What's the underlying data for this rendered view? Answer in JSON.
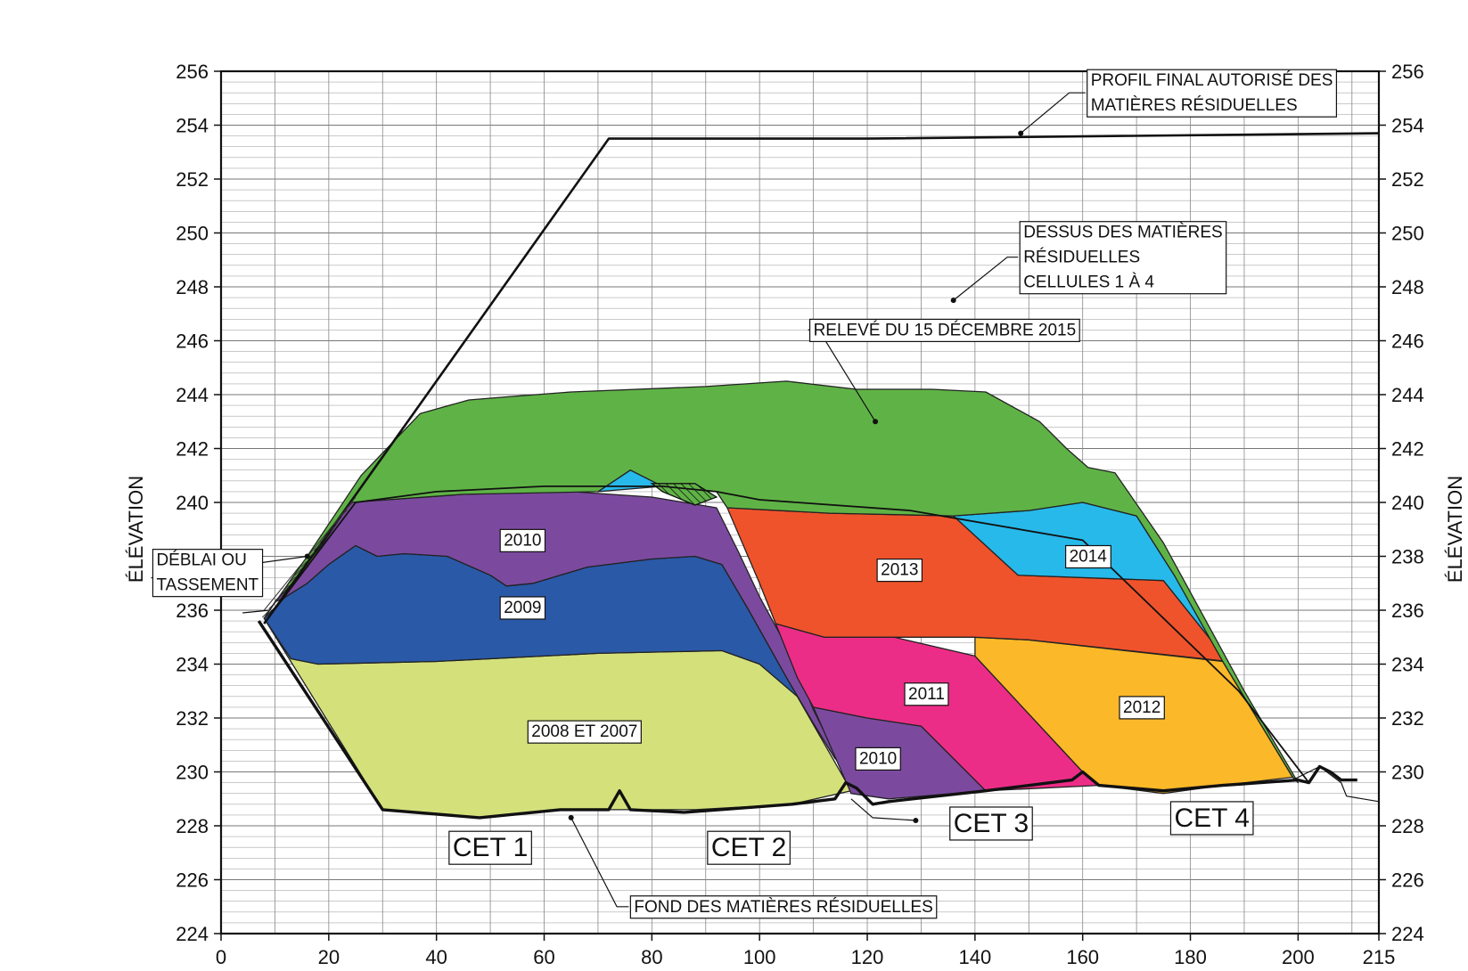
{
  "chart_data": {
    "type": "area",
    "xlim": [
      0,
      215
    ],
    "ylim": [
      224,
      256
    ],
    "x_ticks": [
      "0",
      "20",
      "40",
      "60",
      "80",
      "100",
      "120",
      "140",
      "160",
      "180",
      "200",
      "215"
    ],
    "y_ticks": [
      "224",
      "226",
      "228",
      "230",
      "232",
      "234",
      "236",
      "238",
      "240",
      "242",
      "244",
      "246",
      "248",
      "250",
      "252",
      "254",
      "256"
    ],
    "ylabel": "ÉLÉVATION",
    "grid": true,
    "colors": {
      "2008_2007": "#d4e17b",
      "2009": "#2a59a8",
      "2010": "#7b4a9f",
      "2011": "#ec2d87",
      "2012": "#fbb828",
      "2013": "#ef532c",
      "2014": "#27b9ea",
      "2015": "#5fb346"
    },
    "zones": [
      {
        "name": "2008 ET 2007",
        "color": "#d4e17b",
        "points": [
          [
            8,
            235.7
          ],
          [
            13,
            234.2
          ],
          [
            18,
            234
          ],
          [
            40,
            234.1
          ],
          [
            70,
            234.4
          ],
          [
            93,
            234.5
          ],
          [
            100,
            234
          ],
          [
            107,
            232.8
          ],
          [
            117,
            229.3
          ],
          [
            106,
            228.8
          ],
          [
            88,
            228.6
          ],
          [
            63,
            228.6
          ],
          [
            48,
            228.3
          ],
          [
            30,
            228.6
          ],
          [
            8,
            235.7
          ]
        ]
      },
      {
        "name": "2009",
        "color": "#2a59a8",
        "points": [
          [
            8,
            235.7
          ],
          [
            12,
            236.5
          ],
          [
            16,
            237
          ],
          [
            20,
            237.7
          ],
          [
            25,
            238.4
          ],
          [
            29,
            238
          ],
          [
            34,
            238.1
          ],
          [
            42,
            238
          ],
          [
            50,
            237.3
          ],
          [
            53,
            236.9
          ],
          [
            58,
            237
          ],
          [
            68,
            237.6
          ],
          [
            80,
            237.9
          ],
          [
            88,
            238
          ],
          [
            93,
            237.7
          ],
          [
            98,
            236
          ],
          [
            105,
            233.5
          ],
          [
            110,
            231.8
          ],
          [
            114,
            230.5
          ],
          [
            107,
            232.8
          ],
          [
            100,
            234
          ],
          [
            93,
            234.5
          ],
          [
            70,
            234.4
          ],
          [
            40,
            234.1
          ],
          [
            18,
            234
          ],
          [
            13,
            234.2
          ],
          [
            8,
            235.7
          ]
        ]
      },
      {
        "name": "2010",
        "color": "#7b4a9f",
        "points": [
          [
            10,
            236.3
          ],
          [
            16,
            237.6
          ],
          [
            24,
            240
          ],
          [
            45,
            240.3
          ],
          [
            65,
            240.4
          ],
          [
            80,
            240.2
          ],
          [
            92,
            239.8
          ],
          [
            96,
            238.2
          ],
          [
            100,
            236.5
          ],
          [
            106,
            234.3
          ],
          [
            110,
            232.3
          ],
          [
            115,
            230.3
          ],
          [
            114,
            230.5
          ],
          [
            110,
            231.8
          ],
          [
            105,
            233.5
          ],
          [
            98,
            236
          ],
          [
            93,
            237.7
          ],
          [
            88,
            238
          ],
          [
            80,
            237.9
          ],
          [
            68,
            237.6
          ],
          [
            58,
            237
          ],
          [
            53,
            236.9
          ],
          [
            50,
            237.3
          ],
          [
            42,
            238
          ],
          [
            34,
            238.1
          ],
          [
            29,
            238
          ],
          [
            25,
            238.4
          ],
          [
            20,
            237.7
          ],
          [
            16,
            237
          ],
          [
            12,
            236.5
          ],
          [
            10,
            236.3
          ]
        ]
      },
      {
        "name": "2010b",
        "color": "#7b4a9f",
        "points": [
          [
            110,
            232.4
          ],
          [
            120,
            232
          ],
          [
            130,
            231.7
          ],
          [
            142,
            229.3
          ],
          [
            124,
            229
          ],
          [
            117,
            229.2
          ],
          [
            110,
            232.4
          ]
        ]
      },
      {
        "name": "2011",
        "color": "#ec2d87",
        "points": [
          [
            103,
            235.5
          ],
          [
            112,
            235
          ],
          [
            125,
            235
          ],
          [
            140,
            234.3
          ],
          [
            160,
            230
          ],
          [
            163,
            229.5
          ],
          [
            142,
            229.3
          ],
          [
            130,
            231.7
          ],
          [
            120,
            232
          ],
          [
            110,
            232.4
          ],
          [
            107,
            233.5
          ],
          [
            103,
            235.5
          ]
        ]
      },
      {
        "name": "2012",
        "color": "#fbb828",
        "points": [
          [
            140,
            234.3
          ],
          [
            140,
            235
          ],
          [
            150,
            234.9
          ],
          [
            186,
            234.1
          ],
          [
            199,
            229.8
          ],
          [
            186,
            229.5
          ],
          [
            175,
            229.2
          ],
          [
            163,
            229.5
          ],
          [
            160,
            230
          ],
          [
            140,
            234.3
          ]
        ]
      },
      {
        "name": "2013",
        "color": "#ef532c",
        "points": [
          [
            94,
            239.8
          ],
          [
            113,
            239.6
          ],
          [
            136,
            239.5
          ],
          [
            148,
            237.3
          ],
          [
            175,
            237.1
          ],
          [
            187,
            234.1
          ],
          [
            150,
            234.9
          ],
          [
            140,
            235
          ],
          [
            125,
            235
          ],
          [
            112,
            235
          ],
          [
            103,
            235.5
          ],
          [
            100,
            237
          ],
          [
            94,
            239.8
          ]
        ]
      },
      {
        "name": "2014",
        "color": "#27b9ea",
        "points": [
          [
            136,
            239.5
          ],
          [
            150,
            239.7
          ],
          [
            160,
            240
          ],
          [
            170,
            239.5
          ],
          [
            177,
            237.3
          ],
          [
            187,
            234.1
          ],
          [
            175,
            237.1
          ],
          [
            148,
            237.3
          ],
          [
            136,
            239.5
          ]
        ]
      },
      {
        "name": "2014b",
        "color": "#27b9ea",
        "points": [
          [
            70,
            240.4
          ],
          [
            76,
            241.2
          ],
          [
            82,
            240.6
          ],
          [
            70,
            240.4
          ]
        ]
      },
      {
        "name": "2015",
        "color": "#5fb346",
        "points": [
          [
            8,
            235.7
          ],
          [
            16,
            238
          ],
          [
            26,
            241
          ],
          [
            37,
            243.3
          ],
          [
            46,
            243.8
          ],
          [
            52,
            243.9
          ],
          [
            65,
            244.1
          ],
          [
            90,
            244.3
          ],
          [
            105,
            244.5
          ],
          [
            118,
            244.2
          ],
          [
            132,
            244.2
          ],
          [
            142,
            244.1
          ],
          [
            152,
            243
          ],
          [
            157,
            242
          ],
          [
            161,
            241.3
          ],
          [
            166,
            241.1
          ],
          [
            175,
            238.5
          ],
          [
            190,
            233
          ],
          [
            200,
            229.6
          ],
          [
            199,
            229.8
          ],
          [
            186,
            234.1
          ],
          [
            177,
            237.3
          ],
          [
            170,
            239.5
          ],
          [
            160,
            240
          ],
          [
            150,
            239.7
          ],
          [
            136,
            239.5
          ],
          [
            113,
            239.6
          ],
          [
            94,
            239.8
          ],
          [
            92,
            240.4
          ],
          [
            82,
            240.6
          ],
          [
            76,
            241.2
          ],
          [
            70,
            240.4
          ],
          [
            45,
            240.3
          ],
          [
            24,
            240
          ],
          [
            16,
            237.6
          ],
          [
            10,
            236.3
          ],
          [
            8,
            235.7
          ]
        ]
      }
    ],
    "lines": {
      "profil_final": [
        [
          8,
          235.5
        ],
        [
          72,
          253.5
        ],
        [
          120,
          253.5
        ],
        [
          215,
          253.7
        ]
      ],
      "dessus_cellules": [
        [
          8,
          235.5
        ],
        [
          25,
          240
        ],
        [
          40,
          240.4
        ],
        [
          60,
          240.6
        ],
        [
          82,
          240.6
        ],
        [
          92,
          240.4
        ],
        [
          100,
          240.1
        ],
        [
          128,
          239.7
        ],
        [
          160,
          238.6
        ],
        [
          189,
          233
        ],
        [
          202,
          229.6
        ]
      ],
      "fond": [
        [
          7,
          235.6
        ],
        [
          30,
          228.6
        ],
        [
          48,
          228.3
        ],
        [
          63,
          228.6
        ],
        [
          72,
          228.6
        ],
        [
          74,
          229.3
        ],
        [
          76,
          228.6
        ],
        [
          86,
          228.5
        ],
        [
          106,
          228.8
        ],
        [
          114,
          229
        ],
        [
          116,
          229.6
        ],
        [
          118,
          229.4
        ],
        [
          121,
          228.8
        ],
        [
          124,
          228.9
        ],
        [
          142,
          229.3
        ],
        [
          158,
          229.7
        ],
        [
          160,
          230
        ],
        [
          163,
          229.5
        ],
        [
          175,
          229.3
        ],
        [
          186,
          229.5
        ],
        [
          200,
          229.7
        ],
        [
          202,
          229.6
        ],
        [
          204,
          230.2
        ],
        [
          206,
          230
        ],
        [
          208,
          229.7
        ],
        [
          211,
          229.7
        ]
      ],
      "ground_right": [
        [
          199,
          229.7
        ],
        [
          204,
          230.2
        ],
        [
          208,
          229.6
        ],
        [
          209,
          229.1
        ],
        [
          215,
          228.9
        ]
      ],
      "ground_left": [
        [
          4,
          235.9
        ],
        [
          9,
          236
        ]
      ]
    },
    "hatch_zone": [
      [
        80,
        240.7
      ],
      [
        88,
        240.7
      ],
      [
        92,
        240.2
      ],
      [
        88,
        239.9
      ],
      [
        82,
        240.4
      ],
      [
        80,
        240.7
      ]
    ],
    "zone_labels": [
      {
        "text": "2010",
        "x": 56,
        "y": 238.6
      },
      {
        "text": "2009",
        "x": 56,
        "y": 236.1
      },
      {
        "text": "2008 ET 2007",
        "x": 67.5,
        "y": 231.5
      },
      {
        "text": "2013",
        "x": 126,
        "y": 237.5
      },
      {
        "text": "2014",
        "x": 161,
        "y": 238
      },
      {
        "text": "2011",
        "x": 131,
        "y": 232.9
      },
      {
        "text": "2012",
        "x": 171,
        "y": 232.4
      },
      {
        "text": "2010",
        "x": 122,
        "y": 230.5
      }
    ],
    "cet_labels": [
      {
        "text": "CET 1",
        "x": 50,
        "y": 227.2
      },
      {
        "text": "CET 2",
        "x": 98,
        "y": 227.2
      },
      {
        "text": "CET 3",
        "x": 143,
        "y": 228.1
      },
      {
        "text": "CET 4",
        "x": 184,
        "y": 228.3
      }
    ],
    "callouts": [
      {
        "lines": [
          "PROFIL FINAL AUTORISÉ DES",
          "MATIÈRES RÉSIDUELLES"
        ],
        "box": [
          160.5,
          255.2
        ],
        "leader": [
          [
            160.5,
            255.2
          ],
          [
            157.5,
            255.2
          ],
          [
            148.5,
            253.7
          ]
        ]
      },
      {
        "lines": [
          "DESSUS DES MATIÈRES",
          "RÉSIDUELLES",
          "CELLULES 1 À 4"
        ],
        "box": [
          148,
          249.1
        ],
        "leader": [
          [
            148,
            249.1
          ],
          [
            146,
            249.1
          ],
          [
            136,
            247.5
          ]
        ]
      },
      {
        "lines": [
          "RELEVÉ DU 15 DÉCEMBRE 2015"
        ],
        "box": [
          109,
          246.4
        ],
        "leader": [
          [
            109,
            246.4
          ],
          [
            111,
            246.4
          ],
          [
            121.5,
            243
          ]
        ]
      },
      {
        "lines": [
          "DÉBLAI OU",
          "TASSEMENT"
        ],
        "box": [
          -13,
          237.4
        ],
        "leader": [
          [
            -13,
            237.2
          ],
          [
            16,
            238
          ]
        ]
      },
      {
        "lines": [
          "FOND DES MATIÈRES RÉSIDUELLES"
        ],
        "box": [
          75.7,
          225
        ],
        "leader": [
          [
            75.7,
            225
          ],
          [
            73.5,
            225
          ],
          [
            65,
            228.3
          ]
        ]
      },
      {
        "lines": [],
        "box": null,
        "leader": [
          [
            117,
            229
          ],
          [
            121,
            228.3
          ],
          [
            129,
            228.2
          ]
        ]
      }
    ]
  }
}
